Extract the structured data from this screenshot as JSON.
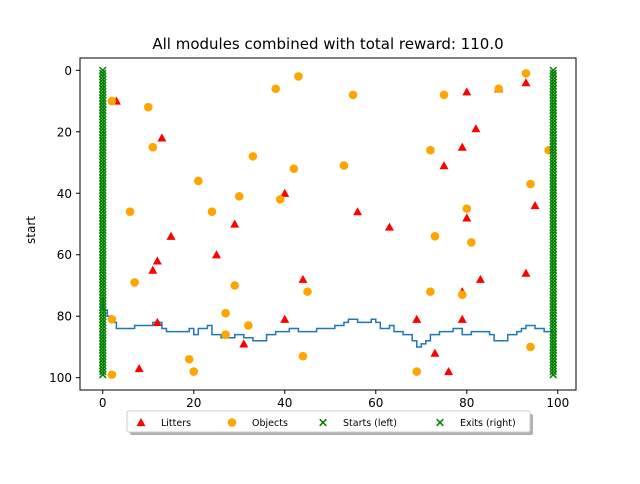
{
  "chart_data": {
    "type": "scatter",
    "title": "All modules combined with total reward: 110.0",
    "xlabel": "",
    "ylabel": "start",
    "xlim": [
      -5,
      104
    ],
    "ylim": [
      -4,
      104
    ],
    "y_inverted": true,
    "x_ticks": [
      0,
      20,
      40,
      60,
      80,
      100
    ],
    "y_ticks": [
      0,
      20,
      40,
      60,
      80,
      100
    ],
    "grid": false,
    "legend": {
      "placement": "bottom-center, below axes",
      "columns": 4
    },
    "series": [
      {
        "name": "Litters",
        "marker": "triangle",
        "color": "#ff0000",
        "points": [
          [
            3,
            10
          ],
          [
            13,
            22
          ],
          [
            12,
            62
          ],
          [
            11,
            65
          ],
          [
            15,
            54
          ],
          [
            12,
            82
          ],
          [
            8,
            97
          ],
          [
            25,
            60
          ],
          [
            29,
            50
          ],
          [
            31,
            89
          ],
          [
            40,
            40
          ],
          [
            40,
            81
          ],
          [
            44,
            68
          ],
          [
            56,
            46
          ],
          [
            63,
            51
          ],
          [
            69,
            81
          ],
          [
            73,
            92
          ],
          [
            75,
            31
          ],
          [
            76,
            98
          ],
          [
            79,
            25
          ],
          [
            79,
            72
          ],
          [
            79,
            81
          ],
          [
            80,
            7
          ],
          [
            80,
            48
          ],
          [
            82,
            19
          ],
          [
            83,
            68
          ],
          [
            87,
            6
          ],
          [
            93,
            4
          ],
          [
            93,
            66
          ],
          [
            95,
            44
          ]
        ]
      },
      {
        "name": "Objects",
        "marker": "circle",
        "color": "#ffa500",
        "points": [
          [
            2,
            10
          ],
          [
            2,
            81
          ],
          [
            2,
            99
          ],
          [
            6,
            46
          ],
          [
            7,
            69
          ],
          [
            10,
            12
          ],
          [
            11,
            25
          ],
          [
            19,
            94
          ],
          [
            20,
            98
          ],
          [
            21,
            36
          ],
          [
            24,
            46
          ],
          [
            27,
            79
          ],
          [
            27,
            86
          ],
          [
            29,
            70
          ],
          [
            30,
            41
          ],
          [
            32,
            83
          ],
          [
            33,
            28
          ],
          [
            38,
            6
          ],
          [
            39,
            42
          ],
          [
            42,
            32
          ],
          [
            43,
            2
          ],
          [
            44,
            93
          ],
          [
            45,
            72
          ],
          [
            53,
            31
          ],
          [
            55,
            8
          ],
          [
            69,
            98
          ],
          [
            72,
            26
          ],
          [
            72,
            72
          ],
          [
            73,
            54
          ],
          [
            75,
            8
          ],
          [
            79,
            73
          ],
          [
            80,
            45
          ],
          [
            81,
            56
          ],
          [
            87,
            6
          ],
          [
            93,
            1
          ],
          [
            94,
            37
          ],
          [
            94,
            90
          ],
          [
            98,
            26
          ]
        ]
      },
      {
        "name": "Starts (left)",
        "marker": "x",
        "color": "#008000",
        "x": 0,
        "y_range": [
          0,
          99
        ]
      },
      {
        "name": "Exits (right)",
        "marker": "x",
        "color": "#008000",
        "x": 99,
        "y_range": [
          0,
          99
        ]
      }
    ],
    "path": {
      "color": "#1f77b4",
      "points": [
        [
          0,
          74
        ],
        [
          0,
          78
        ],
        [
          1,
          78
        ],
        [
          1,
          80
        ],
        [
          2,
          80
        ],
        [
          2,
          82
        ],
        [
          3,
          82
        ],
        [
          3,
          84
        ],
        [
          7,
          84
        ],
        [
          7,
          83
        ],
        [
          11,
          83
        ],
        [
          11,
          82
        ],
        [
          13,
          82
        ],
        [
          13,
          84
        ],
        [
          14,
          84
        ],
        [
          14,
          85
        ],
        [
          19,
          85
        ],
        [
          19,
          84
        ],
        [
          20,
          84
        ],
        [
          20,
          86
        ],
        [
          21,
          86
        ],
        [
          21,
          84
        ],
        [
          23,
          84
        ],
        [
          23,
          83
        ],
        [
          24,
          83
        ],
        [
          24,
          86
        ],
        [
          26,
          86
        ],
        [
          26,
          87
        ],
        [
          29,
          87
        ],
        [
          29,
          86
        ],
        [
          31,
          86
        ],
        [
          31,
          87
        ],
        [
          33,
          87
        ],
        [
          33,
          88
        ],
        [
          36,
          88
        ],
        [
          36,
          86
        ],
        [
          38,
          86
        ],
        [
          38,
          85
        ],
        [
          41,
          85
        ],
        [
          41,
          84
        ],
        [
          43,
          84
        ],
        [
          43,
          85
        ],
        [
          47,
          85
        ],
        [
          47,
          84
        ],
        [
          51,
          84
        ],
        [
          51,
          83
        ],
        [
          53,
          83
        ],
        [
          53,
          82
        ],
        [
          54,
          82
        ],
        [
          54,
          81
        ],
        [
          56,
          81
        ],
        [
          56,
          82
        ],
        [
          59,
          82
        ],
        [
          59,
          81
        ],
        [
          60,
          81
        ],
        [
          60,
          82
        ],
        [
          61,
          82
        ],
        [
          61,
          84
        ],
        [
          63,
          84
        ],
        [
          63,
          83
        ],
        [
          64,
          83
        ],
        [
          64,
          85
        ],
        [
          66,
          85
        ],
        [
          66,
          86
        ],
        [
          68,
          86
        ],
        [
          68,
          88
        ],
        [
          69,
          88
        ],
        [
          69,
          90
        ],
        [
          70,
          90
        ],
        [
          70,
          89
        ],
        [
          71,
          89
        ],
        [
          71,
          88
        ],
        [
          72,
          88
        ],
        [
          72,
          86
        ],
        [
          74,
          86
        ],
        [
          74,
          85
        ],
        [
          77,
          85
        ],
        [
          77,
          84
        ],
        [
          79,
          84
        ],
        [
          79,
          86
        ],
        [
          81,
          86
        ],
        [
          81,
          85
        ],
        [
          85,
          85
        ],
        [
          85,
          86
        ],
        [
          86,
          86
        ],
        [
          86,
          88
        ],
        [
          89,
          88
        ],
        [
          89,
          86
        ],
        [
          91,
          86
        ],
        [
          91,
          85
        ],
        [
          92,
          85
        ],
        [
          92,
          84
        ],
        [
          93,
          84
        ],
        [
          93,
          83
        ],
        [
          95,
          83
        ],
        [
          95,
          84
        ],
        [
          97,
          84
        ],
        [
          97,
          85
        ],
        [
          99,
          85
        ]
      ]
    }
  }
}
